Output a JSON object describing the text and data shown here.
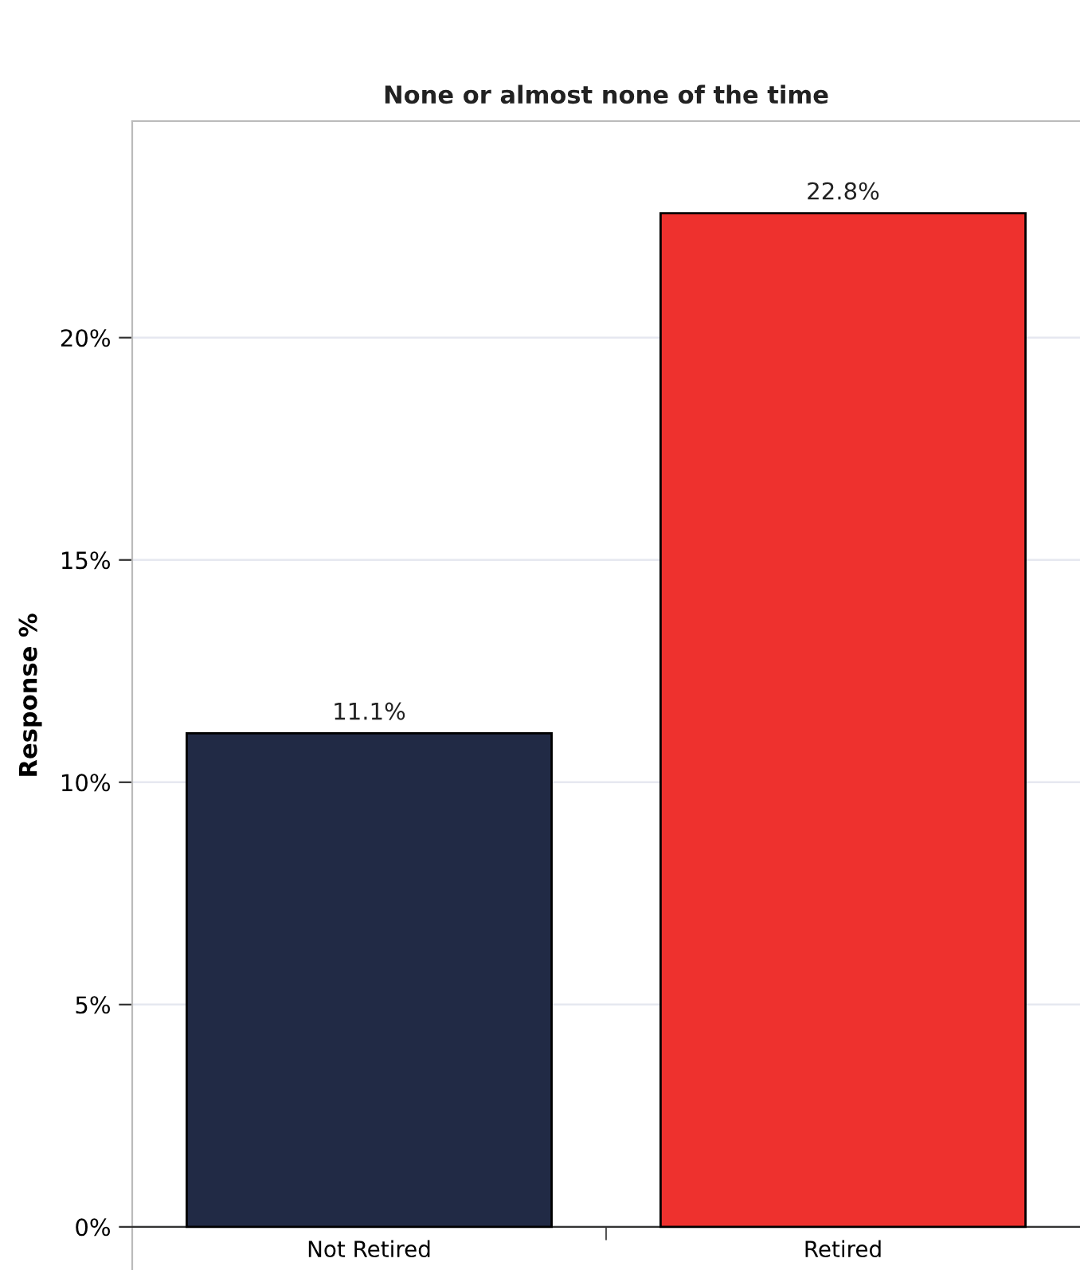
{
  "chart_data": {
    "type": "bar",
    "title": "None or almost none of the time",
    "ylabel": "Response %",
    "categories": [
      "Not Retired",
      "Retired"
    ],
    "values": [
      11.1,
      22.8
    ],
    "colors": [
      "#212a45",
      "#ee312e"
    ],
    "value_labels": [
      "11.1%",
      "22.8%"
    ],
    "ylim": [
      -0.97,
      24.87
    ],
    "yticks": [
      {
        "value": 0,
        "label": "0%"
      },
      {
        "value": 5,
        "label": "5%"
      },
      {
        "value": 10,
        "label": "10%"
      },
      {
        "value": 15,
        "label": "15%"
      },
      {
        "value": 20,
        "label": "20%"
      }
    ],
    "grid": "y",
    "legend": false
  }
}
